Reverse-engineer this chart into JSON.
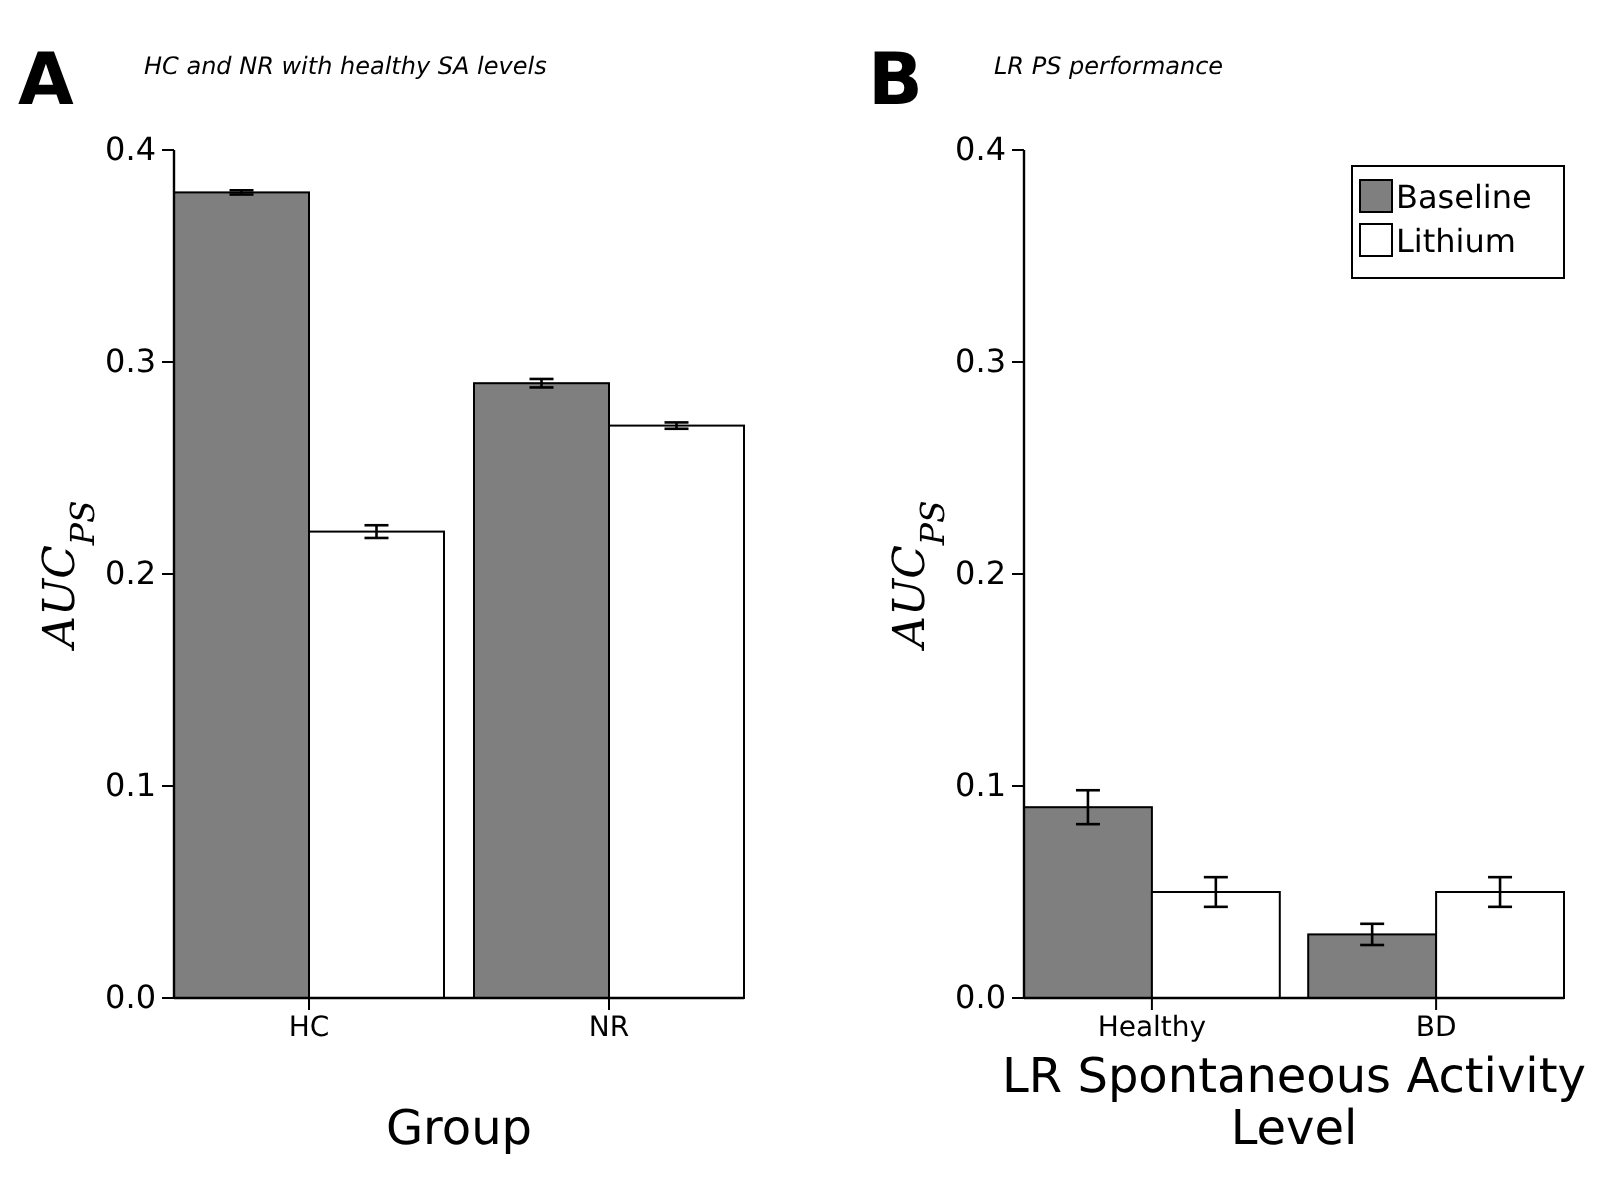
{
  "chart_data": [
    {
      "type": "bar",
      "title": "HC and NR with healthy SA levels",
      "xlabel": "Group",
      "ylabel": "AUC$_{PS}$",
      "annotations": [
        "A"
      ],
      "categories": [
        "HC",
        "NR"
      ],
      "ylim": [
        0,
        0.4
      ],
      "yticks": [
        {
          "value": 0,
          "label": "0.0"
        },
        0.1,
        0.2,
        0.3,
        0.4
      ],
      "grid": false,
      "legend": false,
      "series": [
        {
          "color": "#7f7f7f",
          "values": [
            0.38,
            0.29
          ],
          "errors": [
            0.001,
            0.002
          ]
        },
        {
          "color": "#ffffff",
          "values": [
            0.22,
            0.27
          ],
          "errors": [
            0.003,
            0.0015
          ]
        }
      ]
    },
    {
      "type": "bar",
      "title": "LR PS performance",
      "xlabel": "LR Spontaneous Activity Level",
      "ylabel": "AUC$_{PS}$",
      "annotations": [
        "B"
      ],
      "categories": [
        "Healthy",
        "BD"
      ],
      "ylim": [
        0,
        0.4
      ],
      "yticks": [
        {
          "value": 0,
          "label": "0.0"
        },
        0.1,
        0.2,
        0.3,
        0.4
      ],
      "grid": false,
      "legend": "top right",
      "series": [
        {
          "name": "Baseline",
          "color": "#7f7f7f",
          "values": [
            0.09,
            0.03
          ],
          "errors": [
            0.008,
            0.005
          ]
        },
        {
          "name": "Lithium",
          "color": "#ffffff",
          "values": [
            0.05,
            0.05
          ],
          "errors": [
            0.007,
            0.007
          ]
        }
      ]
    }
  ]
}
